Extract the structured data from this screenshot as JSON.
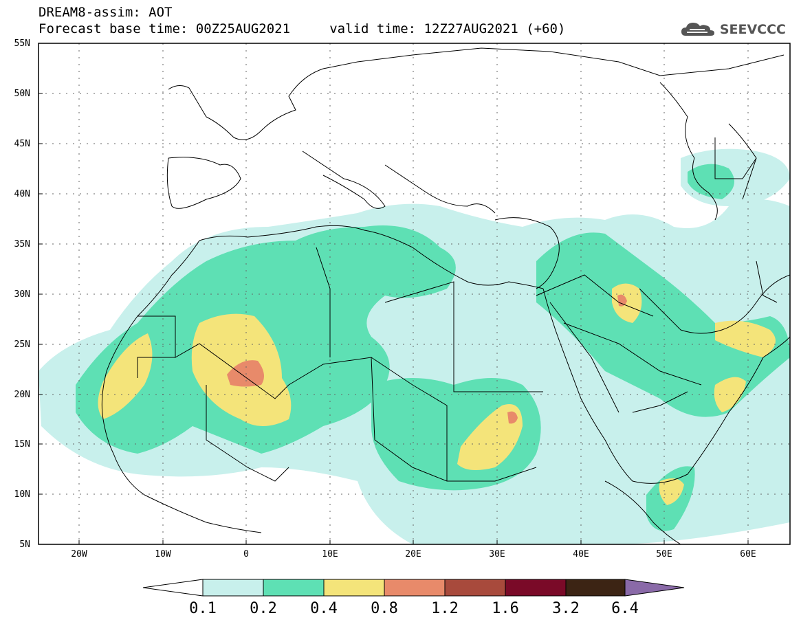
{
  "title": {
    "line1": "DREAM8-assim: AOT",
    "line2": "Forecast base time: 00Z25AUG2021     valid time: 12Z27AUG2021 (+60)"
  },
  "brand": {
    "name": "SEEVCCC",
    "icon": "cloud-logo-icon"
  },
  "map": {
    "lon_range": [
      -25,
      65
    ],
    "lat_range": [
      5,
      55
    ],
    "lat_labels": [
      "55N",
      "50N",
      "45N",
      "40N",
      "35N",
      "30N",
      "25N",
      "20N",
      "15N",
      "10N",
      "5N"
    ],
    "lon_labels": [
      "20W",
      "10W",
      "0",
      "10E",
      "20E",
      "30E",
      "40E",
      "50E",
      "60E"
    ],
    "grid": true
  },
  "colorbar": {
    "labels": [
      "0.1",
      "0.2",
      "0.4",
      "0.8",
      "1.2",
      "1.6",
      "3.2",
      "6.4"
    ],
    "colors": [
      "#ffffff",
      "#c8f0ec",
      "#5ee0b4",
      "#f4e47a",
      "#e88a6a",
      "#a84a3c",
      "#7a0a28",
      "#3c2414",
      "#8a6aa8"
    ]
  }
}
